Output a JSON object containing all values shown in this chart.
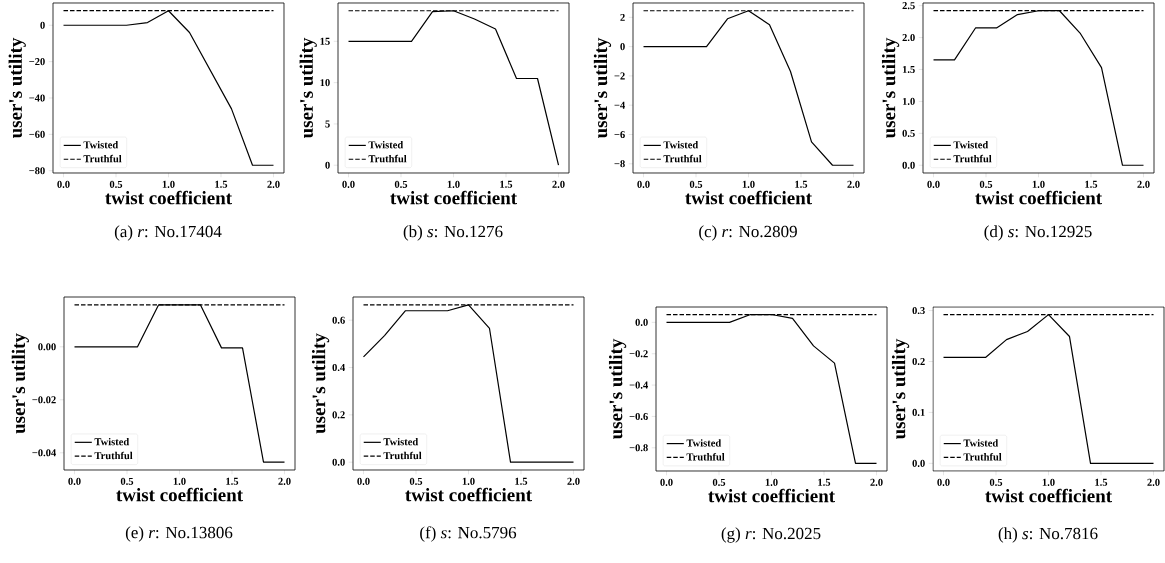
{
  "chart_data": [
    {
      "type": "line",
      "title": "(a) *r*: No.17404",
      "xlabel": "twist coefficient",
      "ylabel": "user's utility",
      "x": [
        0,
        0.2,
        0.4,
        0.6,
        0.8,
        1.0,
        1.2,
        1.4,
        1.6,
        1.8,
        2.0
      ],
      "series": [
        {
          "name": "Twisted",
          "color": "#000000",
          "line_style": "solid",
          "values": [
            0,
            0,
            0,
            0,
            1.5,
            8,
            -4,
            -25,
            -46,
            -77,
            -77
          ]
        },
        {
          "name": "Truthful",
          "color": "#000000",
          "line_style": "dashed",
          "values": [
            8,
            8,
            8,
            8,
            8,
            8,
            8,
            8,
            8,
            8,
            8
          ]
        }
      ],
      "xlim": [
        -0.1,
        2.1
      ],
      "ylim": [
        -81.25,
        12.25
      ],
      "xticks": [
        {
          "value": 0,
          "label": "0.0"
        },
        {
          "value": 0.5,
          "label": "0.5"
        },
        {
          "value": 1,
          "label": "1.0"
        },
        {
          "value": 1.5,
          "label": "1.5"
        },
        {
          "value": 2,
          "label": "2.0"
        }
      ],
      "yticks": [
        {
          "value": -80,
          "label": "−80"
        },
        {
          "value": -60,
          "label": "−60"
        },
        {
          "value": -40,
          "label": "−40"
        },
        {
          "value": -20,
          "label": "−20"
        },
        0
      ],
      "legend": "bottom left",
      "marker": "none",
      "grid": false
    },
    {
      "type": "line",
      "title": "(b) *s*: No.1276",
      "xlabel": "twist coefficient",
      "ylabel": "user's utility",
      "x": [
        0,
        0.2,
        0.4,
        0.6,
        0.8,
        1.0,
        1.2,
        1.4,
        1.6,
        1.8,
        2.0
      ],
      "series": [
        {
          "name": "Twisted",
          "color": "#000000",
          "line_style": "solid",
          "values": [
            15,
            15,
            15,
            15,
            18.6,
            18.7,
            17.7,
            16.5,
            10.5,
            10.5,
            0
          ]
        },
        {
          "name": "Truthful",
          "color": "#000000",
          "line_style": "dashed",
          "values": [
            18.7,
            18.7,
            18.7,
            18.7,
            18.7,
            18.7,
            18.7,
            18.7,
            18.7,
            18.7,
            18.7
          ]
        }
      ],
      "xlim": [
        -0.1,
        2.1
      ],
      "ylim": [
        -0.94,
        19.64
      ],
      "xticks": [
        {
          "value": 0,
          "label": "0.0"
        },
        {
          "value": 0.5,
          "label": "0.5"
        },
        {
          "value": 1,
          "label": "1.0"
        },
        {
          "value": 1.5,
          "label": "1.5"
        },
        {
          "value": 2,
          "label": "2.0"
        }
      ],
      "yticks": [
        0,
        5,
        10,
        15
      ],
      "legend": "bottom left",
      "marker": "none",
      "grid": false
    },
    {
      "type": "line",
      "title": "(c) *r*: No.2809",
      "xlabel": "twist coefficient",
      "ylabel": "user's utility",
      "x": [
        0,
        0.2,
        0.4,
        0.6,
        0.8,
        1.0,
        1.2,
        1.4,
        1.6,
        1.8,
        2.0
      ],
      "series": [
        {
          "name": "Twisted",
          "color": "#000000",
          "line_style": "solid",
          "values": [
            0,
            0,
            0,
            0,
            1.9,
            2.45,
            1.5,
            -1.7,
            -6.5,
            -8.1,
            -8.1
          ]
        },
        {
          "name": "Truthful",
          "color": "#000000",
          "line_style": "dashed",
          "values": [
            2.45,
            2.45,
            2.45,
            2.45,
            2.45,
            2.45,
            2.45,
            2.45,
            2.45,
            2.45,
            2.45
          ]
        }
      ],
      "xlim": [
        -0.1,
        2.1
      ],
      "ylim": [
        -8.63,
        2.98
      ],
      "xticks": [
        {
          "value": 0,
          "label": "0.0"
        },
        {
          "value": 0.5,
          "label": "0.5"
        },
        {
          "value": 1,
          "label": "1.0"
        },
        {
          "value": 1.5,
          "label": "1.5"
        },
        {
          "value": 2,
          "label": "2.0"
        }
      ],
      "yticks": [
        {
          "value": -8,
          "label": "−8"
        },
        {
          "value": -6,
          "label": "−6"
        },
        {
          "value": -4,
          "label": "−4"
        },
        {
          "value": -2,
          "label": "−2"
        },
        0,
        2
      ],
      "legend": "bottom left",
      "marker": "none",
      "grid": false
    },
    {
      "type": "line",
      "title": "(d) *s*: No.12925",
      "xlabel": "twist coefficient",
      "ylabel": "user's utility",
      "x": [
        0,
        0.2,
        0.4,
        0.6,
        0.8,
        1.0,
        1.2,
        1.4,
        1.6,
        1.8,
        2.0
      ],
      "series": [
        {
          "name": "Twisted",
          "color": "#000000",
          "line_style": "solid",
          "values": [
            1.65,
            1.65,
            2.15,
            2.15,
            2.36,
            2.42,
            2.42,
            2.06,
            1.53,
            0,
            0
          ]
        },
        {
          "name": "Truthful",
          "color": "#000000",
          "line_style": "dashed",
          "values": [
            2.42,
            2.42,
            2.42,
            2.42,
            2.42,
            2.42,
            2.42,
            2.42,
            2.42,
            2.42,
            2.42
          ]
        }
      ],
      "xlim": [
        -0.1,
        2.1
      ],
      "ylim": [
        -0.121,
        2.541
      ],
      "xticks": [
        {
          "value": 0,
          "label": "0.0"
        },
        {
          "value": 0.5,
          "label": "0.5"
        },
        {
          "value": 1,
          "label": "1.0"
        },
        {
          "value": 1.5,
          "label": "1.5"
        },
        {
          "value": 2,
          "label": "2.0"
        }
      ],
      "yticks": [
        {
          "value": 0,
          "label": "0.0"
        },
        {
          "value": 0.5,
          "label": "0.5"
        },
        {
          "value": 1,
          "label": "1.0"
        },
        {
          "value": 1.5,
          "label": "1.5"
        },
        {
          "value": 2,
          "label": "2.0"
        },
        2.5
      ],
      "legend": "bottom left",
      "marker": "none",
      "grid": false
    },
    {
      "type": "line",
      "title": "(e) *r*: No.13806",
      "xlabel": "twist coefficient",
      "ylabel": "user's utility",
      "x": [
        0,
        0.2,
        0.4,
        0.6,
        0.8,
        1.0,
        1.2,
        1.4,
        1.6,
        1.8,
        2.0
      ],
      "series": [
        {
          "name": "Twisted",
          "color": "#000000",
          "line_style": "solid",
          "values": [
            0,
            0,
            0,
            0,
            0.0158,
            0.0158,
            0.0158,
            -0.0004,
            -0.0004,
            -0.0435,
            -0.0435
          ]
        },
        {
          "name": "Truthful",
          "color": "#000000",
          "line_style": "dashed",
          "values": [
            0.0158,
            0.0158,
            0.0158,
            0.0158,
            0.0158,
            0.0158,
            0.0158,
            0.0158,
            0.0158,
            0.0158,
            0.0158
          ]
        }
      ],
      "xlim": [
        -0.1,
        2.1
      ],
      "ylim": [
        -0.0465,
        0.0188
      ],
      "xticks": [
        {
          "value": 0,
          "label": "0.0"
        },
        {
          "value": 0.5,
          "label": "0.5"
        },
        {
          "value": 1,
          "label": "1.0"
        },
        {
          "value": 1.5,
          "label": "1.5"
        },
        {
          "value": 2,
          "label": "2.0"
        }
      ],
      "yticks": [
        {
          "value": -0.04,
          "label": "−0.04"
        },
        {
          "value": -0.02,
          "label": "−0.02"
        },
        {
          "value": 0,
          "label": "0.00"
        }
      ],
      "legend": "bottom left",
      "marker": "none",
      "grid": false
    },
    {
      "type": "line",
      "title": "(f) *s*: No.5796",
      "xlabel": "twist coefficient",
      "ylabel": "user's utility",
      "x": [
        0,
        0.2,
        0.4,
        0.6,
        0.8,
        1.0,
        1.2,
        1.4,
        1.6,
        1.8,
        2.0
      ],
      "series": [
        {
          "name": "Twisted",
          "color": "#000000",
          "line_style": "solid",
          "values": [
            0.445,
            0.535,
            0.64,
            0.64,
            0.64,
            0.665,
            0.565,
            0,
            0,
            0,
            0
          ]
        },
        {
          "name": "Truthful",
          "color": "#000000",
          "line_style": "dashed",
          "values": [
            0.665,
            0.665,
            0.665,
            0.665,
            0.665,
            0.665,
            0.665,
            0.665,
            0.665,
            0.665,
            0.665
          ]
        }
      ],
      "xlim": [
        -0.1,
        2.1
      ],
      "ylim": [
        -0.033,
        0.698
      ],
      "xticks": [
        {
          "value": 0,
          "label": "0.0"
        },
        {
          "value": 0.5,
          "label": "0.5"
        },
        {
          "value": 1,
          "label": "1.0"
        },
        {
          "value": 1.5,
          "label": "1.5"
        },
        {
          "value": 2,
          "label": "2.0"
        }
      ],
      "yticks": [
        {
          "value": 0,
          "label": "0.0"
        },
        0.2,
        0.4,
        0.6
      ],
      "legend": "bottom left",
      "marker": "none",
      "grid": false
    },
    {
      "type": "line",
      "title": "(g) *r*: No.2025",
      "xlabel": "twist coefficient",
      "ylabel": "user's utility",
      "x": [
        0,
        0.2,
        0.4,
        0.6,
        0.8,
        1.0,
        1.2,
        1.4,
        1.6,
        1.8,
        2.0
      ],
      "series": [
        {
          "name": "Twisted",
          "color": "#000000",
          "line_style": "solid",
          "values": [
            0,
            0,
            0,
            0,
            0.05,
            0.05,
            0.025,
            -0.15,
            -0.26,
            -0.9,
            -0.9
          ]
        },
        {
          "name": "Truthful",
          "color": "#000000",
          "line_style": "dashed",
          "values": [
            0.05,
            0.05,
            0.05,
            0.05,
            0.05,
            0.05,
            0.05,
            0.05,
            0.05,
            0.05,
            0.05
          ]
        }
      ],
      "xlim": [
        -0.1,
        2.1
      ],
      "ylim": [
        -0.948,
        0.098
      ],
      "xticks": [
        {
          "value": 0,
          "label": "0.0"
        },
        {
          "value": 0.5,
          "label": "0.5"
        },
        {
          "value": 1,
          "label": "1.0"
        },
        {
          "value": 1.5,
          "label": "1.5"
        },
        {
          "value": 2,
          "label": "2.0"
        }
      ],
      "yticks": [
        {
          "value": -0.8,
          "label": "−0.8"
        },
        {
          "value": -0.6,
          "label": "−0.6"
        },
        {
          "value": -0.4,
          "label": "−0.4"
        },
        {
          "value": -0.2,
          "label": "−0.2"
        },
        {
          "value": 0,
          "label": "0.0"
        }
      ],
      "legend": "bottom left",
      "marker": "none",
      "grid": false
    },
    {
      "type": "line",
      "title": "(h) *s*: No.7816",
      "xlabel": "twist coefficient",
      "ylabel": "user's utility",
      "x": [
        0,
        0.2,
        0.4,
        0.6,
        0.8,
        1.0,
        1.2,
        1.4,
        1.6,
        1.8,
        2.0
      ],
      "series": [
        {
          "name": "Twisted",
          "color": "#000000",
          "line_style": "solid",
          "values": [
            0.208,
            0.208,
            0.208,
            0.243,
            0.259,
            0.292,
            0.249,
            0,
            0,
            0,
            0
          ]
        },
        {
          "name": "Truthful",
          "color": "#000000",
          "line_style": "dashed",
          "values": [
            0.292,
            0.292,
            0.292,
            0.292,
            0.292,
            0.292,
            0.292,
            0.292,
            0.292,
            0.292,
            0.292
          ]
        }
      ],
      "xlim": [
        -0.1,
        2.1
      ],
      "ylim": [
        -0.015,
        0.307
      ],
      "xticks": [
        {
          "value": 0,
          "label": "0.0"
        },
        {
          "value": 0.5,
          "label": "0.5"
        },
        {
          "value": 1,
          "label": "1.0"
        },
        {
          "value": 1.5,
          "label": "1.5"
        },
        {
          "value": 2,
          "label": "2.0"
        }
      ],
      "yticks": [
        {
          "value": 0,
          "label": "0.0"
        },
        0.1,
        0.2,
        0.3
      ],
      "legend": "bottom left",
      "marker": "none",
      "grid": false
    }
  ]
}
